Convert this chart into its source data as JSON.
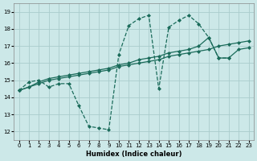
{
  "xlabel": "Humidex (Indice chaleur)",
  "bg_color": "#cce8e8",
  "grid_color": "#aacccc",
  "line_color": "#1a6b5a",
  "xlim": [
    -0.5,
    23.5
  ],
  "ylim": [
    11.5,
    19.5
  ],
  "xticks": [
    0,
    1,
    2,
    3,
    4,
    5,
    6,
    7,
    8,
    9,
    10,
    11,
    12,
    13,
    14,
    15,
    16,
    17,
    18,
    19,
    20,
    21,
    22,
    23
  ],
  "yticks": [
    12,
    13,
    14,
    15,
    16,
    17,
    18,
    19
  ],
  "line_volatile_x": [
    0,
    1,
    2,
    3,
    4,
    5,
    6,
    7,
    8,
    9,
    10,
    11,
    12,
    13,
    14,
    15,
    16,
    17,
    18,
    19,
    20,
    21
  ],
  "line_volatile_y": [
    14.4,
    14.9,
    15.0,
    14.6,
    14.8,
    14.8,
    13.5,
    12.3,
    12.2,
    12.1,
    16.5,
    18.2,
    18.6,
    18.8,
    14.5,
    18.1,
    18.5,
    18.8,
    18.3,
    17.5,
    16.3,
    16.3
  ],
  "line_upper_x": [
    0,
    1,
    2,
    3,
    4,
    5,
    6,
    7,
    8,
    9,
    10,
    11,
    12,
    13,
    14,
    15,
    16,
    17,
    18,
    19,
    20,
    21,
    22,
    23
  ],
  "line_upper_y": [
    14.4,
    14.6,
    14.9,
    15.1,
    15.2,
    15.3,
    15.4,
    15.5,
    15.6,
    15.7,
    15.9,
    16.0,
    16.2,
    16.3,
    16.4,
    16.6,
    16.7,
    16.8,
    17.0,
    17.5,
    16.3,
    16.3,
    16.8,
    16.9
  ],
  "line_lower_x": [
    0,
    1,
    2,
    3,
    4,
    5,
    6,
    7,
    8,
    9,
    10,
    11,
    12,
    13,
    14,
    15,
    16,
    17,
    18,
    19,
    20,
    21,
    22,
    23
  ],
  "line_lower_y": [
    14.4,
    14.6,
    14.8,
    15.0,
    15.1,
    15.2,
    15.3,
    15.4,
    15.5,
    15.6,
    15.8,
    15.9,
    16.0,
    16.1,
    16.2,
    16.4,
    16.5,
    16.6,
    16.7,
    16.8,
    17.0,
    17.1,
    17.2,
    17.3
  ]
}
